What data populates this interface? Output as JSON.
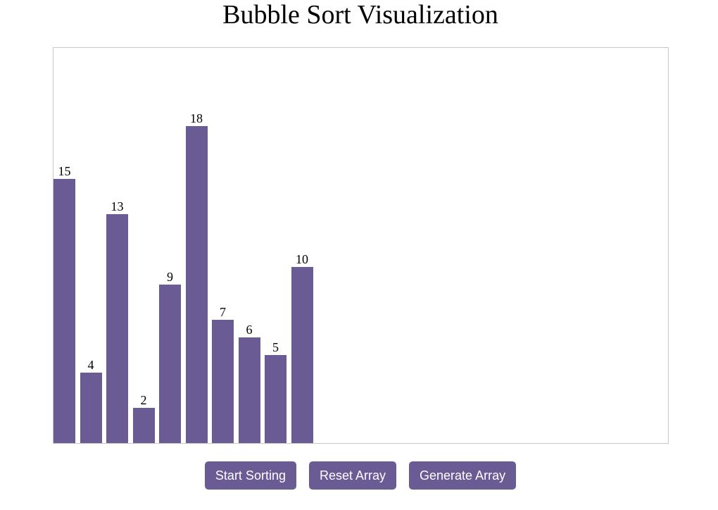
{
  "page": {
    "title": "Bubble Sort Visualization"
  },
  "colors": {
    "bar": "#6b5b95",
    "button_bg": "#6b5b95",
    "button_text": "#ffffff",
    "border": "#c8c8c8"
  },
  "chart_data": {
    "type": "bar",
    "values": [
      15,
      4,
      13,
      2,
      9,
      18,
      7,
      6,
      5,
      10
    ]
  },
  "controls": {
    "start_label": "Start Sorting",
    "reset_label": "Reset Array",
    "generate_label": "Generate Array"
  }
}
